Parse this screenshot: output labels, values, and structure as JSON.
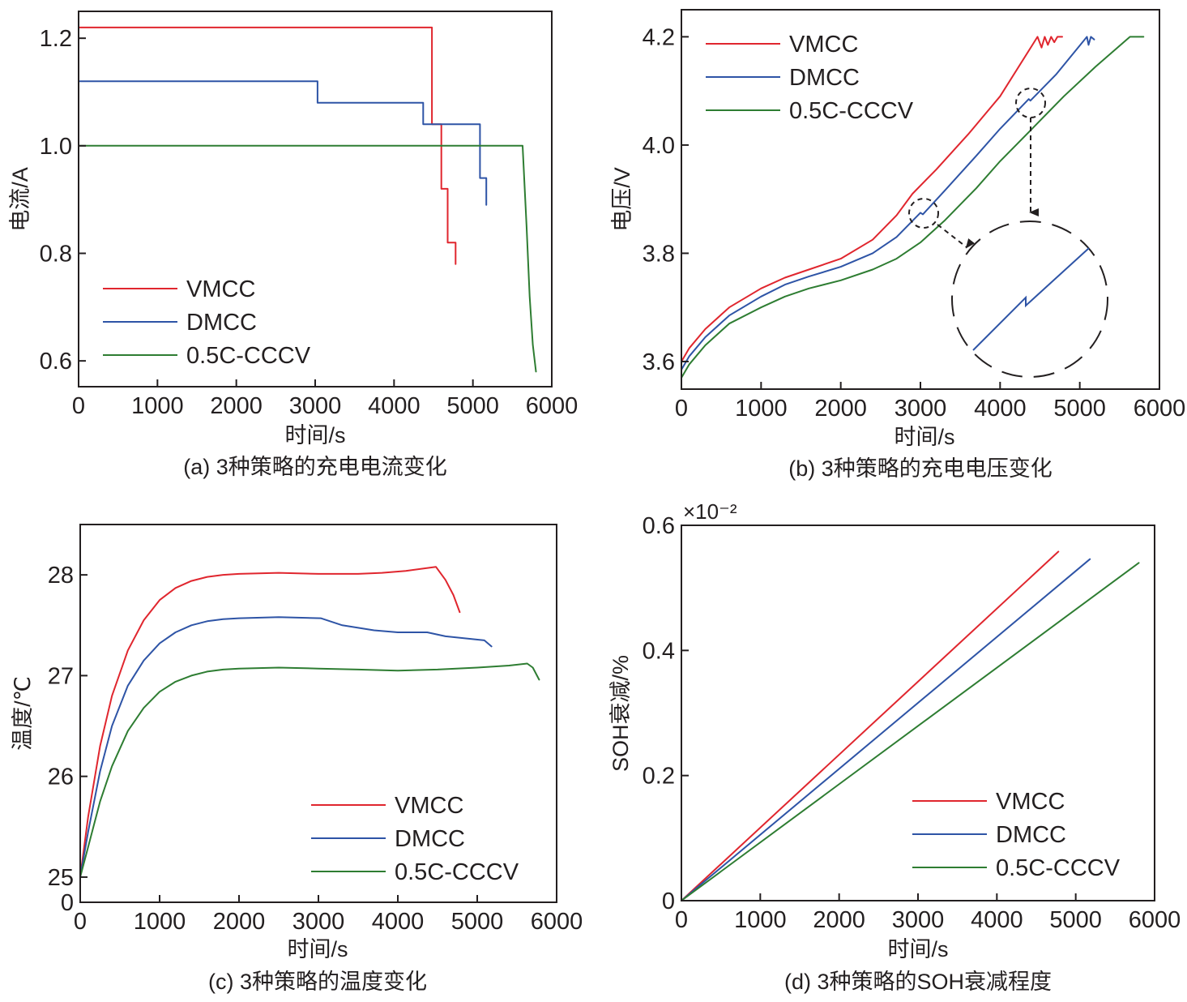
{
  "chart_data": [
    {
      "id": "a",
      "type": "line",
      "title": "",
      "caption": "(a) 3种策略的充电电流变化",
      "xlabel": "时间/s",
      "ylabel": "电流/A",
      "xlim": [
        0,
        6000
      ],
      "ylim": [
        0.552,
        1.25
      ],
      "xticks": [
        0,
        1000,
        2000,
        3000,
        4000,
        5000,
        6000
      ],
      "xtick_labels": [
        "0",
        "1000",
        "2000",
        "3000",
        "4000",
        "5000",
        "6000"
      ],
      "yticks": [
        0.6,
        0.8,
        1.0,
        1.2
      ],
      "ytick_labels": [
        "0.6",
        "0.8",
        "1.0",
        "1.2"
      ],
      "legend": "middle-left",
      "grid": false,
      "series": [
        {
          "name": "VMCC",
          "color": "#e0262e",
          "x": [
            0,
            4480,
            4480,
            4600,
            4600,
            4680,
            4680,
            4780,
            4780
          ],
          "y": [
            1.22,
            1.22,
            1.04,
            1.04,
            0.92,
            0.92,
            0.82,
            0.82,
            0.78
          ]
        },
        {
          "name": "DMCC",
          "color": "#2e54a6",
          "x": [
            0,
            3030,
            3030,
            4370,
            4370,
            5090,
            5090,
            5170,
            5170
          ],
          "y": [
            1.12,
            1.12,
            1.08,
            1.08,
            1.04,
            1.04,
            0.94,
            0.94,
            0.89
          ]
        },
        {
          "name": "0.5C-CCCV",
          "color": "#2e7d32",
          "x": [
            0,
            5630,
            5680,
            5720,
            5760,
            5800
          ],
          "y": [
            1.0,
            1.0,
            0.85,
            0.72,
            0.63,
            0.58
          ]
        }
      ]
    },
    {
      "id": "b",
      "type": "line",
      "title": "",
      "caption": "(b) 3种策略的充电电压变化",
      "xlabel": "时间/s",
      "ylabel": "电压/V",
      "xlim": [
        0,
        6000
      ],
      "ylim": [
        3.549,
        4.25
      ],
      "xticks": [
        0,
        1000,
        2000,
        3000,
        4000,
        5000,
        6000
      ],
      "xtick_labels": [
        "0",
        "1000",
        "2000",
        "3000",
        "4000",
        "5000",
        "6000"
      ],
      "yticks": [
        3.6,
        3.8,
        4.0,
        4.2
      ],
      "ytick_labels": [
        "3.6",
        "3.8",
        "4.0",
        "4.2"
      ],
      "legend": "top-left",
      "grid": false,
      "annotations": [
        "zoom-circle at t≈3000 s on DMCC",
        "zoom-circle at t≈4370 s on DMCC",
        "inset showing small voltage step on DMCC"
      ],
      "series": [
        {
          "name": "VMCC",
          "color": "#e0262e",
          "x": [
            0,
            100,
            300,
            600,
            1000,
            1300,
            1600,
            2000,
            2400,
            2700,
            2900,
            3200,
            3600,
            4000,
            4470,
            4520,
            4560,
            4600,
            4640,
            4680,
            4720,
            4780
          ],
          "y": [
            3.6,
            3.625,
            3.66,
            3.7,
            3.735,
            3.755,
            3.77,
            3.79,
            3.825,
            3.87,
            3.91,
            3.955,
            4.02,
            4.09,
            4.2,
            4.18,
            4.2,
            4.185,
            4.2,
            4.19,
            4.2,
            4.2
          ]
        },
        {
          "name": "DMCC",
          "color": "#2e54a6",
          "x": [
            0,
            100,
            300,
            600,
            1000,
            1300,
            1600,
            2000,
            2400,
            2700,
            3000,
            3030,
            3300,
            3700,
            4000,
            4360,
            4380,
            4700,
            5090,
            5110,
            5140,
            5180
          ],
          "y": [
            3.585,
            3.61,
            3.645,
            3.685,
            3.72,
            3.742,
            3.757,
            3.775,
            3.8,
            3.83,
            3.875,
            3.872,
            3.915,
            3.98,
            4.03,
            4.085,
            4.082,
            4.13,
            4.2,
            4.185,
            4.2,
            4.195
          ]
        },
        {
          "name": "0.5C-CCCV",
          "color": "#2e7d32",
          "x": [
            0,
            100,
            300,
            600,
            1000,
            1300,
            1600,
            2000,
            2400,
            2700,
            3000,
            3300,
            3700,
            4000,
            4400,
            4800,
            5200,
            5630,
            5800
          ],
          "y": [
            3.57,
            3.595,
            3.63,
            3.67,
            3.7,
            3.72,
            3.735,
            3.75,
            3.77,
            3.79,
            3.82,
            3.86,
            3.92,
            3.97,
            4.03,
            4.09,
            4.145,
            4.2,
            4.2
          ]
        }
      ]
    },
    {
      "id": "c",
      "type": "line",
      "title": "",
      "caption": "(c) 3种策略的温度变化",
      "xlabel": "时间/s",
      "ylabel": "温度/℃",
      "xlim": [
        0,
        6000
      ],
      "ylim": [
        24.75,
        28.5
      ],
      "xticks": [
        0,
        1000,
        2000,
        3000,
        4000,
        5000,
        6000
      ],
      "xtick_labels": [
        "0",
        "1000",
        "2000",
        "3000",
        "4000",
        "5000",
        "6000"
      ],
      "yticks": [
        25,
        26,
        27,
        28
      ],
      "ytick_labels": [
        "25",
        "26",
        "27",
        "28"
      ],
      "y_axis_break_label": "0",
      "legend": "bottom-right",
      "grid": false,
      "series": [
        {
          "name": "VMCC",
          "color": "#e0262e",
          "x": [
            0,
            100,
            250,
            400,
            600,
            800,
            1000,
            1200,
            1400,
            1600,
            1800,
            2000,
            2500,
            3000,
            3500,
            3800,
            4100,
            4480,
            4600,
            4700,
            4780
          ],
          "y": [
            25.0,
            25.6,
            26.3,
            26.8,
            27.25,
            27.55,
            27.75,
            27.87,
            27.94,
            27.98,
            28.0,
            28.01,
            28.02,
            28.01,
            28.01,
            28.02,
            28.04,
            28.08,
            27.95,
            27.8,
            27.63
          ]
        },
        {
          "name": "DMCC",
          "color": "#2e54a6",
          "x": [
            0,
            100,
            250,
            400,
            600,
            800,
            1000,
            1200,
            1400,
            1600,
            1800,
            2000,
            2500,
            3030,
            3300,
            3700,
            4000,
            4370,
            4600,
            5090,
            5180
          ],
          "y": [
            25.0,
            25.45,
            26.05,
            26.5,
            26.9,
            27.15,
            27.32,
            27.43,
            27.5,
            27.54,
            27.56,
            27.57,
            27.58,
            27.57,
            27.5,
            27.45,
            27.43,
            27.43,
            27.39,
            27.35,
            27.29
          ]
        },
        {
          "name": "0.5C-CCCV",
          "color": "#2e7d32",
          "x": [
            0,
            100,
            250,
            400,
            600,
            800,
            1000,
            1200,
            1400,
            1600,
            1800,
            2000,
            2500,
            3000,
            3500,
            4000,
            4500,
            5000,
            5400,
            5630,
            5700,
            5780
          ],
          "y": [
            25.0,
            25.3,
            25.75,
            26.1,
            26.45,
            26.68,
            26.84,
            26.94,
            27.0,
            27.04,
            27.06,
            27.07,
            27.08,
            27.07,
            27.06,
            27.05,
            27.06,
            27.08,
            27.1,
            27.12,
            27.08,
            26.96
          ]
        }
      ]
    },
    {
      "id": "d",
      "type": "line",
      "title": "",
      "caption": "(d) 3种策略的SOH衰减程度",
      "xlabel": "时间/s",
      "ylabel": "SOH衰减/%",
      "y_multiplier": "×10⁻²",
      "xlim": [
        0,
        6000
      ],
      "ylim": [
        0,
        0.6
      ],
      "xticks": [
        0,
        1000,
        2000,
        3000,
        4000,
        5000,
        6000
      ],
      "xtick_labels": [
        "0",
        "1000",
        "2000",
        "3000",
        "4000",
        "5000",
        "6000"
      ],
      "yticks": [
        0,
        0.2,
        0.4,
        0.6
      ],
      "ytick_labels": [
        "0",
        "0.2",
        "0.4",
        "0.6"
      ],
      "legend": "bottom-right",
      "grid": false,
      "series": [
        {
          "name": "VMCC",
          "color": "#e0262e",
          "x": [
            0,
            4780
          ],
          "y": [
            0,
            0.558
          ]
        },
        {
          "name": "DMCC",
          "color": "#2e54a6",
          "x": [
            0,
            5180
          ],
          "y": [
            0,
            0.546
          ]
        },
        {
          "name": "0.5C-CCCV",
          "color": "#2e7d32",
          "x": [
            0,
            5800
          ],
          "y": [
            0,
            0.54
          ]
        }
      ]
    }
  ]
}
